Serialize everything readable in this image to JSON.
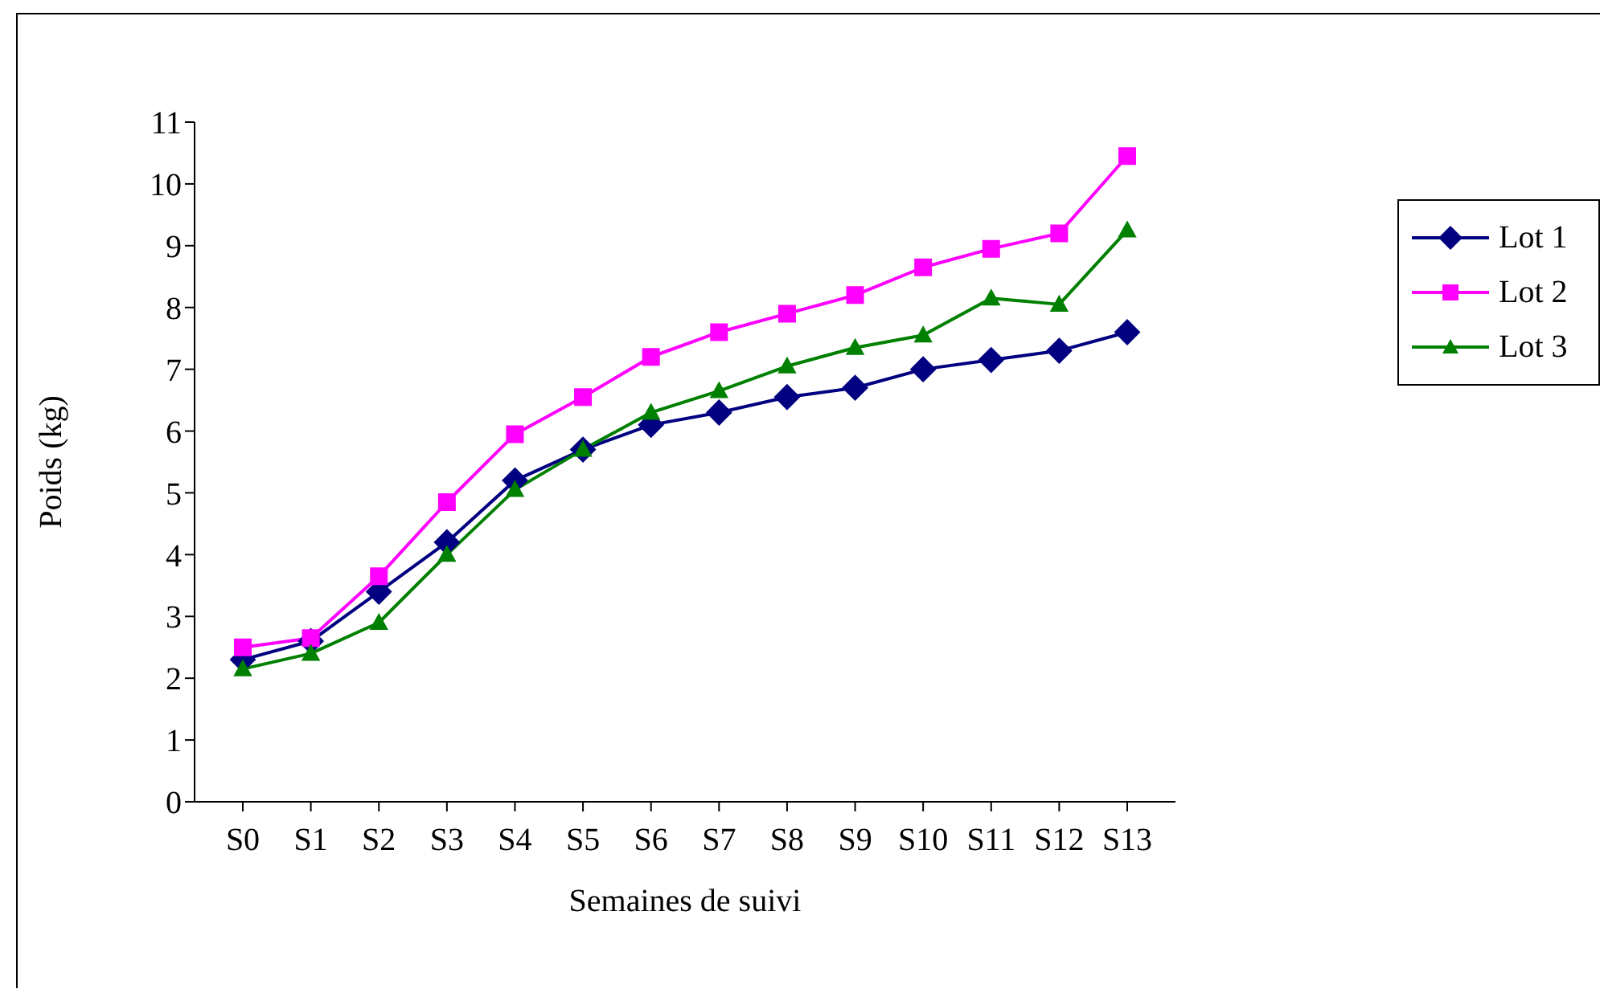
{
  "chart_data": {
    "type": "line",
    "xlabel": "Semaines de suivi",
    "ylabel": "Poids (kg)",
    "categories": [
      "S0",
      "S1",
      "S2",
      "S3",
      "S4",
      "S5",
      "S6",
      "S7",
      "S8",
      "S9",
      "S10",
      "S11",
      "S12",
      "S13"
    ],
    "series": [
      {
        "name": "Lot 1",
        "color": "#000080",
        "marker": "diamond",
        "values": [
          2.3,
          2.6,
          3.4,
          4.2,
          5.2,
          5.7,
          6.1,
          6.3,
          6.55,
          6.7,
          7.0,
          7.15,
          7.3,
          7.6
        ]
      },
      {
        "name": "Lot 2",
        "color": "#ff00ff",
        "marker": "square",
        "values": [
          2.5,
          2.65,
          3.65,
          4.85,
          5.95,
          6.55,
          7.2,
          7.6,
          7.9,
          8.2,
          8.65,
          8.95,
          9.2,
          10.45
        ]
      },
      {
        "name": "Lot 3",
        "color": "#008000",
        "marker": "triangle",
        "values": [
          2.15,
          2.4,
          2.9,
          4.0,
          5.05,
          5.7,
          6.3,
          6.65,
          7.05,
          7.35,
          7.55,
          8.15,
          8.05,
          9.25
        ]
      }
    ],
    "ylim": [
      0,
      11
    ],
    "yticks": [
      0,
      1,
      2,
      3,
      4,
      5,
      6,
      7,
      8,
      9,
      10,
      11
    ],
    "grid": false,
    "legend": "right",
    "line_style": "solid"
  }
}
